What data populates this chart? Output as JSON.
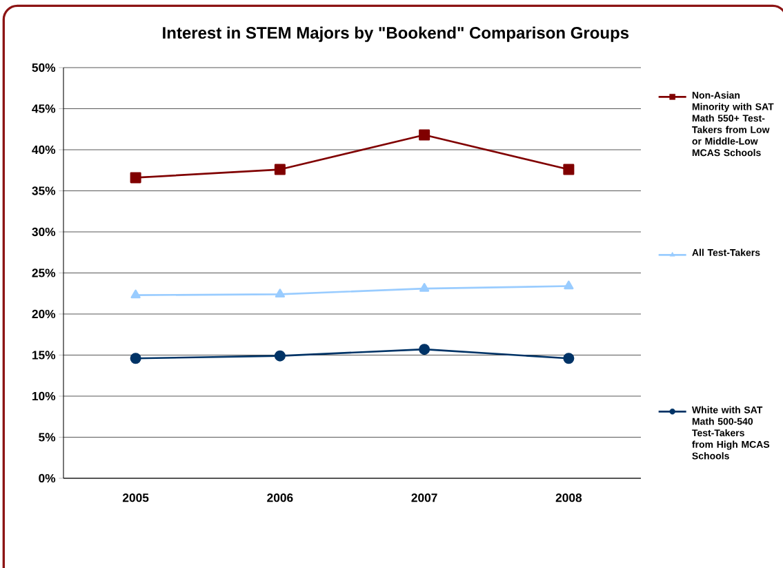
{
  "chart_data": {
    "type": "line",
    "title": "Interest in STEM Majors by \"Bookend\" Comparison Groups",
    "categories": [
      "2005",
      "2006",
      "2007",
      "2008"
    ],
    "series": [
      {
        "name": "Non-Asian Minority with SAT Math 550+ Test-Takers from Low or Middle-Low MCAS Schools",
        "color": "#800000",
        "marker": "square",
        "values": [
          36.6,
          37.6,
          41.8,
          37.6
        ]
      },
      {
        "name": "All Test-Takers",
        "color": "#99ccff",
        "marker": "triangle",
        "values": [
          22.3,
          22.4,
          23.1,
          23.4
        ]
      },
      {
        "name": "White with SAT Math 500-540 Test-Takers from High MCAS Schools",
        "color": "#003366",
        "marker": "circle",
        "values": [
          14.6,
          14.9,
          15.7,
          14.6
        ]
      }
    ],
    "ylim": [
      0,
      50
    ],
    "yticks": [
      {
        "value": 0,
        "label": "0%"
      },
      {
        "value": 5,
        "label": "5%"
      },
      {
        "value": 10,
        "label": "10%"
      },
      {
        "value": 15,
        "label": "15%"
      },
      {
        "value": 20,
        "label": "20%"
      },
      {
        "value": 25,
        "label": "25%"
      },
      {
        "value": 30,
        "label": "30%"
      },
      {
        "value": 35,
        "label": "35%"
      },
      {
        "value": 40,
        "label": "40%"
      },
      {
        "value": 45,
        "label": "45%"
      },
      {
        "value": 50,
        "label": "50%"
      }
    ],
    "grid": "y",
    "legend": "right",
    "line_style": "solid"
  }
}
